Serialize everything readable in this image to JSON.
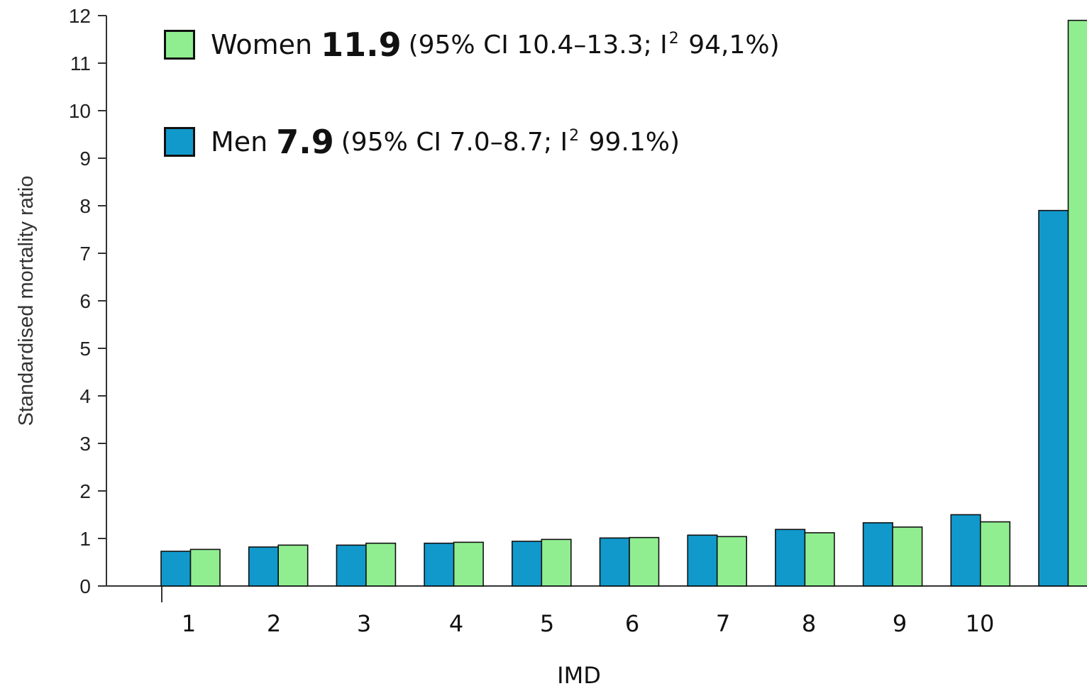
{
  "chart_data": {
    "type": "bar",
    "title": "",
    "xlabel": "IMD",
    "ylabel": "Standardised mortality ratio",
    "ylim": [
      0,
      12
    ],
    "yticks": [
      "0",
      "1",
      "2",
      "3",
      "4",
      "5",
      "6",
      "7",
      "8",
      "9",
      "10",
      "11",
      "12"
    ],
    "categories": [
      "1",
      "2",
      "3",
      "4",
      "5",
      "6",
      "7",
      "8",
      "9",
      "10",
      ""
    ],
    "series": [
      {
        "name": "Men",
        "color": "#1199cc",
        "values": [
          0.73,
          0.82,
          0.86,
          0.9,
          0.94,
          1.01,
          1.07,
          1.19,
          1.33,
          1.5,
          7.9
        ]
      },
      {
        "name": "Women",
        "color": "#90ee90",
        "values": [
          0.77,
          0.86,
          0.9,
          0.92,
          0.98,
          1.02,
          1.04,
          1.12,
          1.24,
          1.35,
          11.9
        ]
      }
    ],
    "grid": false,
    "legend": {
      "placement": "top-left",
      "entries": [
        {
          "name": "Women",
          "value": "11.9",
          "ci_open": "(95% CI 10.4–13.3; I",
          "sup": "2",
          "ci_close": " 94,1%)",
          "color": "#90ee90"
        },
        {
          "name": "Men",
          "value": "7.9",
          "ci_open": "(95% CI 7.0–8.7; I",
          "sup": "2",
          "ci_close": " 99.1%)",
          "color": "#1199cc"
        }
      ]
    }
  }
}
